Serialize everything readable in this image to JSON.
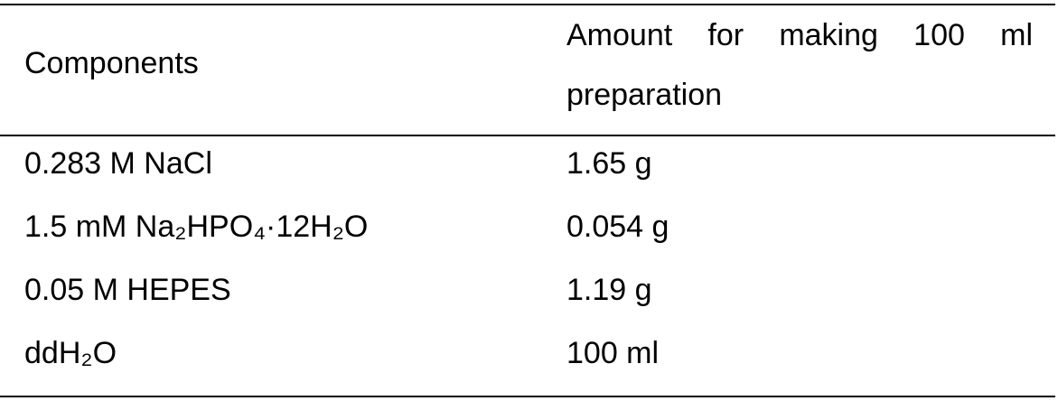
{
  "table": {
    "header": [
      "Components",
      "Amount for making 100 ml preparation"
    ],
    "rows": [
      [
        "0.283 M NaCl",
        "1.65 g"
      ],
      [
        "1.5 mM Na₂HPO₄·12H₂O",
        "0.054 g"
      ],
      [
        "0.05 M HEPES",
        "1.19 g"
      ],
      [
        "ddH₂O",
        "100 ml"
      ]
    ]
  }
}
